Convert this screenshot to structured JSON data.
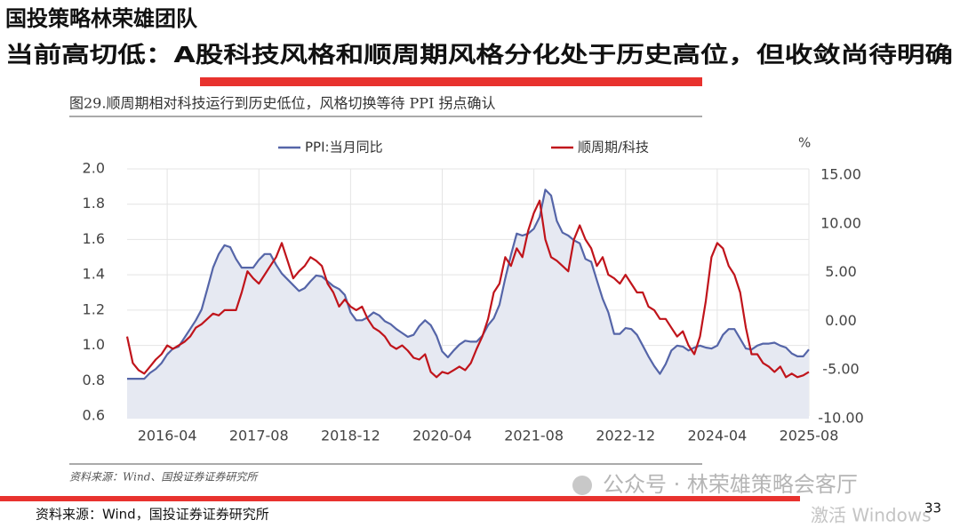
{
  "header": {
    "team": "国投策略林荣雄团队",
    "headline": "当前高切低：A股科技风格和顺周期风格分化处于历史高位，但收敛尚待明确"
  },
  "chart_data": {
    "type": "line",
    "title": "图29.顺周期相对科技运行到历史低位，风格切换等待 PPI 拐点确认",
    "source": "资料来源：Wind、国投证券证券研究所",
    "y2_unit": "%",
    "grid": true,
    "x": [
      "2015-09",
      "2015-10",
      "2015-11",
      "2015-12",
      "2016-01",
      "2016-02",
      "2016-03",
      "2016-04",
      "2016-05",
      "2016-06",
      "2016-07",
      "2016-08",
      "2016-09",
      "2016-10",
      "2016-11",
      "2016-12",
      "2017-01",
      "2017-02",
      "2017-03",
      "2017-04",
      "2017-05",
      "2017-06",
      "2017-07",
      "2017-08",
      "2017-09",
      "2017-10",
      "2017-11",
      "2017-12",
      "2018-01",
      "2018-02",
      "2018-03",
      "2018-04",
      "2018-05",
      "2018-06",
      "2018-07",
      "2018-08",
      "2018-09",
      "2018-10",
      "2018-11",
      "2018-12",
      "2019-01",
      "2019-02",
      "2019-03",
      "2019-04",
      "2019-05",
      "2019-06",
      "2019-07",
      "2019-08",
      "2019-09",
      "2019-10",
      "2019-11",
      "2019-12",
      "2020-01",
      "2020-02",
      "2020-03",
      "2020-04",
      "2020-05",
      "2020-06",
      "2020-07",
      "2020-08",
      "2020-09",
      "2020-10",
      "2020-11",
      "2020-12",
      "2021-01",
      "2021-02",
      "2021-03",
      "2021-04",
      "2021-05",
      "2021-06",
      "2021-07",
      "2021-08",
      "2021-09",
      "2021-10",
      "2021-11",
      "2021-12",
      "2022-01",
      "2022-02",
      "2022-03",
      "2022-04",
      "2022-05",
      "2022-06",
      "2022-07",
      "2022-08",
      "2022-09",
      "2022-10",
      "2022-11",
      "2022-12",
      "2023-01",
      "2023-02",
      "2023-03",
      "2023-04",
      "2023-05",
      "2023-06",
      "2023-07",
      "2023-08",
      "2023-09",
      "2023-10",
      "2023-11",
      "2023-12",
      "2024-01",
      "2024-02",
      "2024-03",
      "2024-04",
      "2024-05",
      "2024-06",
      "2024-07",
      "2024-08",
      "2024-09",
      "2024-10",
      "2024-11",
      "2024-12",
      "2025-01",
      "2025-02",
      "2025-03",
      "2025-04",
      "2025-05",
      "2025-06",
      "2025-07",
      "2025-08"
    ],
    "xticks": [
      "2016-04",
      "2017-08",
      "2018-12",
      "2020-04",
      "2021-08",
      "2022-12",
      "2024-04",
      "2025-08"
    ],
    "ylim": [
      0.6,
      2.0
    ],
    "yticks": [
      0.6,
      0.8,
      {
        "value": 1,
        "label": "1.0"
      },
      1.2,
      1.4,
      1.6,
      1.8,
      {
        "value": 2,
        "label": "2.0"
      }
    ],
    "y2lim": [
      -10,
      15
    ],
    "y2ticks": [
      {
        "value": -10,
        "label": "-10.00"
      },
      {
        "value": -5,
        "label": "-5.00"
      },
      {
        "value": 0,
        "label": "0.00"
      },
      {
        "value": 5,
        "label": "5.00"
      },
      {
        "value": 10,
        "label": "10.00"
      },
      {
        "value": 15,
        "label": "15.00"
      }
    ],
    "series": [
      {
        "name": "PPI:当月同比",
        "color": "#5565a8",
        "area_color": "#e6e9f2",
        "axis": "y2",
        "values": [
          -5.9,
          -5.9,
          -5.9,
          -5.9,
          -5.3,
          -4.9,
          -4.3,
          -3.4,
          -2.8,
          -2.6,
          -1.7,
          -0.8,
          0.1,
          1.2,
          3.3,
          5.5,
          6.9,
          7.8,
          7.6,
          6.4,
          5.5,
          5.5,
          5.5,
          6.3,
          6.9,
          6.9,
          5.8,
          4.9,
          4.3,
          3.7,
          3.1,
          3.4,
          4.1,
          4.7,
          4.6,
          4.1,
          3.6,
          3.3,
          2.7,
          0.9,
          0.1,
          0.1,
          0.4,
          0.9,
          0.6,
          0.0,
          -0.3,
          -0.8,
          -1.2,
          -1.6,
          -1.4,
          -0.5,
          0.1,
          -0.4,
          -1.5,
          -3.1,
          -3.7,
          -3.0,
          -2.4,
          -2.0,
          -2.1,
          -2.1,
          -1.5,
          -0.4,
          0.3,
          1.7,
          4.4,
          6.8,
          9.0,
          8.8,
          9.0,
          9.5,
          10.7,
          13.5,
          12.9,
          10.3,
          9.1,
          8.8,
          8.3,
          8.0,
          6.4,
          6.1,
          4.2,
          2.3,
          0.9,
          -1.3,
          -1.3,
          -0.7,
          -0.8,
          -1.4,
          -2.5,
          -3.6,
          -4.6,
          -5.4,
          -4.4,
          -3.0,
          -2.5,
          -2.6,
          -3.0,
          -2.7,
          -2.5,
          -2.7,
          -2.8,
          -2.5,
          -1.4,
          -0.8,
          -0.8,
          -1.8,
          -2.8,
          -2.9,
          -2.5,
          -2.3,
          -2.3,
          -2.2,
          -2.5,
          -2.7,
          -3.3,
          -3.6,
          -3.6,
          -2.9
        ]
      },
      {
        "name": "顺周期/科技",
        "color": "#c0141b",
        "axis": "y",
        "values": [
          1.05,
          0.9,
          0.86,
          0.84,
          0.88,
          0.92,
          0.95,
          1.0,
          0.98,
          1.0,
          1.02,
          1.05,
          1.1,
          1.12,
          1.15,
          1.18,
          1.17,
          1.2,
          1.2,
          1.2,
          1.3,
          1.42,
          1.38,
          1.35,
          1.4,
          1.45,
          1.5,
          1.58,
          1.48,
          1.38,
          1.42,
          1.45,
          1.5,
          1.48,
          1.45,
          1.35,
          1.3,
          1.22,
          1.26,
          1.22,
          1.2,
          1.22,
          1.15,
          1.1,
          1.08,
          1.05,
          1.0,
          0.98,
          1.0,
          0.97,
          0.93,
          0.92,
          0.95,
          0.85,
          0.82,
          0.85,
          0.84,
          0.86,
          0.88,
          0.86,
          0.9,
          0.98,
          1.05,
          1.15,
          1.3,
          1.35,
          1.5,
          1.45,
          1.55,
          1.5,
          1.65,
          1.75,
          1.82,
          1.6,
          1.5,
          1.48,
          1.45,
          1.42,
          1.6,
          1.68,
          1.6,
          1.55,
          1.45,
          1.5,
          1.4,
          1.38,
          1.35,
          1.4,
          1.35,
          1.3,
          1.3,
          1.22,
          1.2,
          1.15,
          1.15,
          1.1,
          1.05,
          1.08,
          1.0,
          0.95,
          1.05,
          1.25,
          1.5,
          1.58,
          1.55,
          1.45,
          1.4,
          1.3,
          1.1,
          0.95,
          0.95,
          0.9,
          0.88,
          0.85,
          0.88,
          0.82,
          0.84,
          0.82,
          0.83,
          0.85
        ]
      }
    ]
  },
  "footer": {
    "source": "资料来源：Wind，国投证券证券研究所",
    "watermark": "公众号 · 林荣雄策略会客厅",
    "activation": "激活 Windows",
    "page": "33"
  }
}
